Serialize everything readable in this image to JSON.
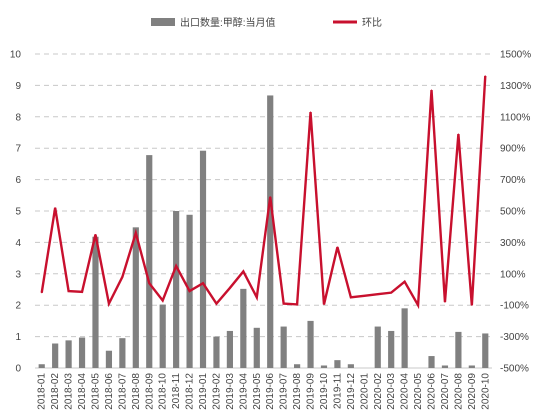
{
  "chart_data": {
    "type": "bar+line",
    "legend_position": "top",
    "grid": true,
    "categories": [
      "2018-01",
      "2018-02",
      "2018-03",
      "2018-04",
      "2018-05",
      "2018-06",
      "2018-07",
      "2018-08",
      "2018-09",
      "2018-10",
      "2018-11",
      "2018-12",
      "2019-01",
      "2019-02",
      "2019-03",
      "2019-04",
      "2019-05",
      "2019-06",
      "2019-07",
      "2019-08",
      "2019-09",
      "2019-10",
      "2019-11",
      "2019-12",
      "2020-01",
      "2020-02",
      "2020-03",
      "2020-04",
      "2020-05",
      "2020-06",
      "2020-07",
      "2020-08",
      "2020-09",
      "2020-10"
    ],
    "series": [
      {
        "name": "出口数量:甲醇:当月值",
        "type": "bar",
        "axis": "left",
        "color": "#808080",
        "values": [
          0.12,
          0.78,
          0.88,
          0.97,
          4.18,
          0.55,
          0.95,
          4.48,
          6.78,
          2.02,
          5.0,
          4.88,
          6.92,
          1.0,
          1.18,
          2.52,
          1.28,
          8.68,
          1.32,
          0.12,
          1.5,
          0.08,
          0.25,
          0.12,
          0.0,
          1.32,
          1.18,
          1.9,
          0.0,
          0.38,
          0.08,
          1.15,
          0.08,
          1.1
        ]
      },
      {
        "name": "环比",
        "type": "line",
        "axis": "right",
        "color": "#c8102e",
        "values": [
          -20,
          520,
          -10,
          -15,
          350,
          -90,
          80,
          360,
          40,
          -70,
          150,
          -10,
          40,
          -90,
          10,
          115,
          -50,
          590,
          -90,
          -95,
          1130,
          -95,
          270,
          -50,
          -40,
          -30,
          -20,
          50,
          -100,
          1270,
          -80,
          990,
          -100,
          1360
        ]
      }
    ],
    "y_left": {
      "min": 0,
      "max": 10,
      "ticks": [
        "0",
        "1",
        "2",
        "3",
        "4",
        "5",
        "6",
        "7",
        "8",
        "9",
        "10"
      ]
    },
    "y_right": {
      "min": -500,
      "max": 1500,
      "ticks": [
        "-500%",
        "-300%",
        "-100%",
        "100%",
        "300%",
        "500%",
        "700%",
        "900%",
        "1100%",
        "1300%",
        "1500%"
      ]
    }
  }
}
